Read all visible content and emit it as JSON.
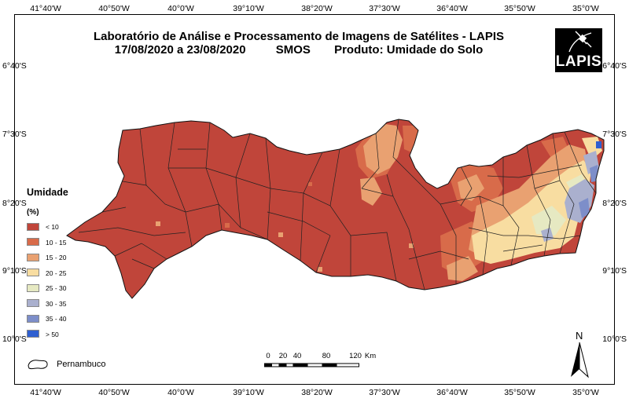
{
  "title_line1": "Laboratório de Análise e Processamento de Imagens de Satélites - LAPIS",
  "title_line2": {
    "period": "17/08/2020  a  23/08/2020",
    "sensor": "SMOS",
    "product": "Produto: Umidade do Solo"
  },
  "logo_text": "LAPIS",
  "longitude_ticks": [
    "41°40'W",
    "40°50'W",
    "40°0'W",
    "39°10'W",
    "38°20'W",
    "37°30'W",
    "36°40'W",
    "35°50'W",
    "35°0'W"
  ],
  "latitude_ticks": [
    "6°40'S",
    "7°30'S",
    "8°20'S",
    "9°10'S",
    "10°0'S"
  ],
  "legend": {
    "title": "Umidade",
    "unit": "(%)",
    "classes": [
      {
        "label": "< 10",
        "color": "#c0453a"
      },
      {
        "label": "10 - 15",
        "color": "#d86b4a"
      },
      {
        "label": "15 - 20",
        "color": "#e9a171"
      },
      {
        "label": "20 - 25",
        "color": "#f8dda1"
      },
      {
        "label": "25 - 30",
        "color": "#e6e9c2"
      },
      {
        "label": "30 - 35",
        "color": "#aab0ce"
      },
      {
        "label": "35 - 40",
        "color": "#7d8ec9"
      },
      {
        "label": "> 50",
        "color": "#2f5fd0"
      }
    ]
  },
  "boundary_legend_label": "Pernambuco",
  "scale_bar": {
    "labels": [
      "0",
      "20",
      "40",
      "80",
      "120"
    ],
    "unit": "Km"
  },
  "north_label": "N"
}
